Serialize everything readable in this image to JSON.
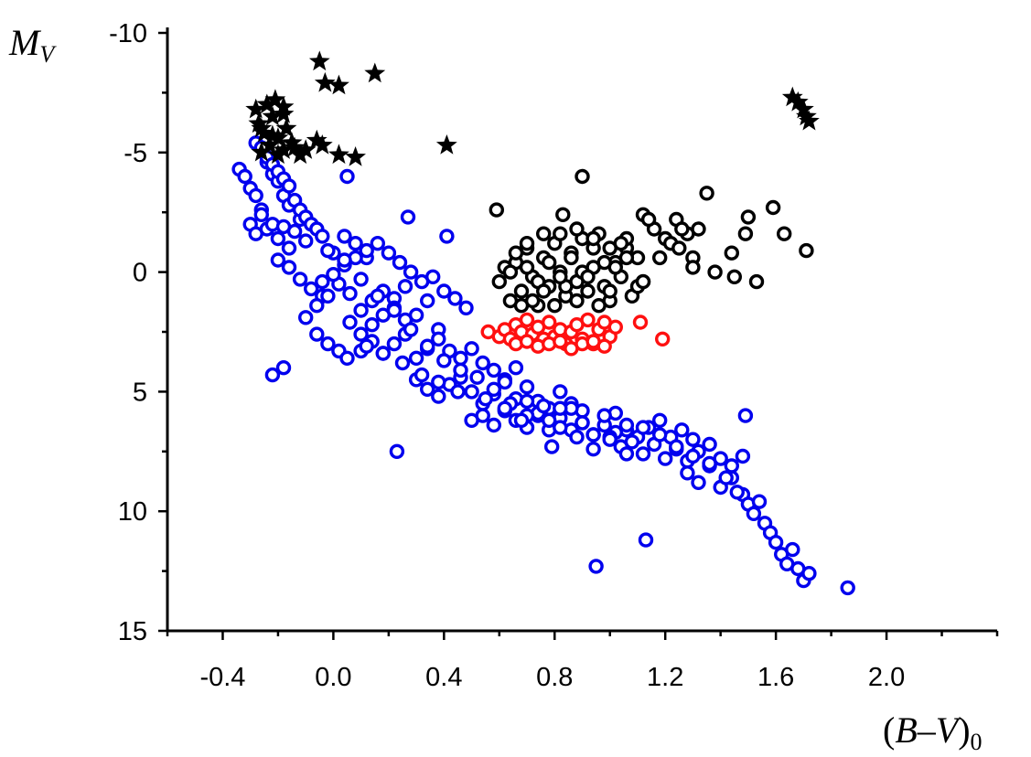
{
  "chart_data": {
    "type": "scatter",
    "xlabel_parts": [
      "(",
      "B",
      "–",
      "V",
      ")",
      "0"
    ],
    "ylabel_parts": [
      "M",
      "V"
    ],
    "xlim": [
      -0.6,
      2.4
    ],
    "ylim": [
      15,
      -10
    ],
    "y_inverted": true,
    "x_ticks": [
      "-0.4",
      "0.0",
      "0.4",
      "0.8",
      "1.2",
      "1.6",
      "2.0"
    ],
    "x_tick_values": [
      -0.4,
      0.0,
      0.4,
      0.8,
      1.2,
      1.6,
      2.0
    ],
    "y_ticks": [
      "-10",
      "-5",
      "0",
      "5",
      "10",
      "15"
    ],
    "y_tick_values": [
      -10,
      -5,
      0,
      5,
      10,
      15
    ],
    "grid": false,
    "legend": "none",
    "series": [
      {
        "marker": "open-circle",
        "color": "#0000ee",
        "x": [
          -0.34,
          -0.32,
          -0.3,
          -0.28,
          -0.26,
          -0.24,
          -0.22,
          -0.2,
          -0.18,
          -0.16,
          -0.3,
          -0.28,
          -0.26,
          -0.24,
          -0.22,
          -0.2,
          -0.18,
          -0.16,
          -0.14,
          -0.12,
          -0.1,
          -0.28,
          -0.26,
          -0.24,
          -0.22,
          -0.2,
          -0.18,
          -0.16,
          -0.14,
          -0.12,
          -0.1,
          -0.08,
          -0.06,
          -0.04,
          -0.2,
          -0.16,
          -0.12,
          -0.08,
          -0.04,
          0.0,
          0.04,
          0.08,
          0.12,
          -0.1,
          -0.06,
          -0.02,
          0.02,
          0.06,
          0.1,
          0.14,
          0.18,
          0.22,
          0.26,
          -0.06,
          -0.02,
          0.02,
          0.06,
          0.1,
          0.14,
          0.18,
          0.22,
          0.26,
          0.3,
          0.34,
          0.38,
          -0.04,
          0.0,
          0.04,
          0.08,
          0.12,
          0.16,
          0.2,
          0.24,
          0.28,
          0.32,
          0.36,
          0.4,
          0.44,
          0.48,
          0.1,
          0.14,
          0.18,
          0.22,
          0.26,
          0.3,
          0.34,
          0.38,
          0.42,
          0.46,
          0.5,
          0.54,
          0.58,
          0.62,
          0.66,
          0.3,
          0.34,
          0.38,
          0.42,
          0.46,
          0.5,
          0.54,
          0.58,
          0.62,
          0.66,
          0.7,
          0.74,
          0.78,
          0.82,
          0.86,
          0.9,
          0.5,
          0.54,
          0.58,
          0.62,
          0.66,
          0.7,
          0.74,
          0.78,
          0.82,
          0.86,
          0.9,
          0.94,
          0.98,
          1.02,
          1.06,
          0.7,
          0.74,
          0.78,
          0.82,
          0.86,
          0.9,
          0.94,
          0.98,
          1.02,
          1.06,
          1.1,
          1.14,
          1.18,
          1.22,
          1.26,
          1.3,
          1.0,
          1.04,
          1.08,
          1.12,
          1.16,
          1.2,
          1.24,
          1.28,
          1.32,
          1.36,
          1.4,
          1.44,
          1.48,
          1.28,
          1.32,
          1.36,
          1.4,
          1.44,
          1.48,
          1.5,
          1.52,
          1.54,
          1.56,
          1.58,
          1.6,
          1.62,
          1.64,
          1.66,
          1.68,
          1.7,
          1.72,
          -0.02,
          0.04,
          0.1,
          0.16,
          0.22,
          0.28,
          0.34,
          0.4,
          0.46,
          0.52,
          0.58,
          0.64,
          0.7,
          0.76,
          0.82,
          0.88,
          0.94,
          1.0,
          1.06,
          1.12,
          1.18,
          1.24,
          1.3,
          1.36,
          1.42,
          1.46,
          0.05,
          0.12,
          0.18,
          0.25,
          0.32,
          0.38,
          0.45,
          0.55,
          0.62,
          0.68,
          -0.22,
          -0.18,
          0.23,
          0.95,
          1.13,
          1.86,
          1.49,
          0.79,
          0.05,
          0.27,
          0.41
        ],
        "y": [
          -4.3,
          -4.0,
          -3.5,
          -3.2,
          -2.6,
          -4.6,
          -4.1,
          -3.8,
          -3.2,
          -2.8,
          -2.0,
          -1.6,
          -2.4,
          -1.8,
          -2.0,
          -1.4,
          -1.9,
          -1.0,
          -1.7,
          -2.2,
          -1.3,
          -5.4,
          -5.2,
          -4.8,
          -4.5,
          -4.2,
          -3.9,
          -3.6,
          -3.0,
          -2.6,
          -2.3,
          -2.0,
          -1.8,
          -1.5,
          -0.5,
          -0.2,
          0.3,
          0.7,
          1.0,
          -0.8,
          -1.5,
          -1.2,
          -0.6,
          1.9,
          1.4,
          1.0,
          0.5,
          0.9,
          1.6,
          1.2,
          0.8,
          1.1,
          0.6,
          2.6,
          3.0,
          3.3,
          2.1,
          2.6,
          2.2,
          1.8,
          1.5,
          2.0,
          1.8,
          1.2,
          2.4,
          0.4,
          0.1,
          -0.3,
          -0.6,
          -0.9,
          -1.2,
          -0.8,
          -0.4,
          0.0,
          0.4,
          0.2,
          0.8,
          1.1,
          1.5,
          3.3,
          2.9,
          3.4,
          3.0,
          2.6,
          3.6,
          3.2,
          2.8,
          3.3,
          3.6,
          3.2,
          3.8,
          4.1,
          4.5,
          4.0,
          4.5,
          4.9,
          5.2,
          4.7,
          4.4,
          5.0,
          5.5,
          5.1,
          4.6,
          5.3,
          4.8,
          5.4,
          5.7,
          5.0,
          5.5,
          5.8,
          6.2,
          6.0,
          6.4,
          5.8,
          6.2,
          6.5,
          6.0,
          6.6,
          6.1,
          5.7,
          6.3,
          6.8,
          6.4,
          5.9,
          6.6,
          5.4,
          5.9,
          6.2,
          5.7,
          6.6,
          6.3,
          6.8,
          6.0,
          6.7,
          6.4,
          6.9,
          6.5,
          6.2,
          6.9,
          6.6,
          7.0,
          6.9,
          7.3,
          7.1,
          7.6,
          7.2,
          7.8,
          7.4,
          7.9,
          7.5,
          7.2,
          7.8,
          8.1,
          7.7,
          8.4,
          8.8,
          8.1,
          9.0,
          8.6,
          9.3,
          9.7,
          10.1,
          9.6,
          10.5,
          10.9,
          11.3,
          11.8,
          12.2,
          11.6,
          12.4,
          12.9,
          12.6,
          -0.9,
          -0.5,
          0.3,
          1.0,
          1.6,
          2.4,
          3.1,
          3.7,
          4.1,
          4.4,
          4.9,
          5.5,
          6.0,
          5.6,
          6.5,
          6.9,
          7.4,
          7.0,
          7.6,
          6.5,
          6.8,
          7.3,
          7.7,
          8.0,
          8.6,
          9.2,
          3.6,
          3.1,
          3.4,
          3.8,
          4.3,
          4.6,
          5.0,
          5.3,
          5.7,
          6.2,
          4.3,
          4.0,
          7.5,
          12.3,
          11.2,
          13.2,
          6.0,
          7.3,
          -4.0,
          -2.3,
          -1.5
        ],
        "note": "approximate sample of the dense blue population (main sequence)"
      },
      {
        "marker": "open-circle",
        "color": "#ff1010",
        "x": [
          0.56,
          0.6,
          0.62,
          0.64,
          0.66,
          0.68,
          0.7,
          0.72,
          0.74,
          0.76,
          0.78,
          0.8,
          0.82,
          0.84,
          0.86,
          0.88,
          0.9,
          0.92,
          0.94,
          0.96,
          0.98,
          1.0,
          1.02,
          0.66,
          0.7,
          0.74,
          0.78,
          0.82,
          0.86,
          0.9,
          0.94,
          0.98,
          1.11,
          1.19
        ],
        "y": [
          2.5,
          2.7,
          2.4,
          2.8,
          2.2,
          2.5,
          2.0,
          2.6,
          2.3,
          2.8,
          2.1,
          2.7,
          2.4,
          3.0,
          2.5,
          2.2,
          2.8,
          2.0,
          3.0,
          2.4,
          2.1,
          2.7,
          2.3,
          3.0,
          2.9,
          3.1,
          3.0,
          2.9,
          3.2,
          3.0,
          2.9,
          3.1,
          2.1,
          2.8
        ],
        "note": "approximate red population"
      },
      {
        "marker": "open-circle",
        "color": "#000000",
        "x": [
          0.59,
          0.6,
          0.62,
          0.64,
          0.66,
          0.68,
          0.7,
          0.72,
          0.74,
          0.76,
          0.78,
          0.8,
          0.82,
          0.84,
          0.86,
          0.88,
          0.9,
          0.92,
          0.94,
          0.96,
          0.98,
          1.0,
          1.02,
          1.04,
          1.06,
          1.08,
          1.1,
          1.12,
          0.66,
          0.7,
          0.74,
          0.78,
          0.82,
          0.86,
          0.9,
          0.94,
          0.98,
          1.02,
          1.06,
          1.1,
          0.68,
          0.72,
          0.76,
          0.8,
          0.84,
          0.88,
          0.92,
          0.96,
          1.0,
          1.04,
          0.64,
          0.7,
          0.76,
          0.82,
          0.88,
          0.94,
          1.0,
          1.06,
          1.12,
          1.16,
          1.2,
          1.24,
          1.28,
          1.3,
          1.32,
          1.35,
          1.38,
          1.44,
          1.45,
          1.49,
          1.5,
          1.53,
          1.59,
          1.63,
          1.71,
          0.9,
          0.83,
          1.12,
          1.14,
          1.18,
          1.22,
          1.26,
          1.3,
          1.25
        ],
        "y": [
          -2.6,
          0.4,
          -0.2,
          1.2,
          -0.4,
          0.8,
          -1.0,
          0.2,
          1.4,
          -0.6,
          0.6,
          -1.2,
          0.0,
          1.0,
          -0.8,
          0.4,
          -1.4,
          0.8,
          -0.2,
          -1.6,
          0.6,
          1.2,
          -0.4,
          0.2,
          -1.0,
          1.0,
          -0.6,
          0.4,
          -0.8,
          -0.2,
          0.4,
          -0.4,
          -1.6,
          -0.6,
          0.0,
          -1.0,
          -0.4,
          -0.2,
          -1.4,
          0.6,
          1.4,
          1.2,
          0.8,
          1.4,
          0.6,
          1.2,
          0.2,
          1.4,
          0.8,
          -1.2,
          0.0,
          -1.2,
          -1.6,
          0.2,
          -1.8,
          -1.4,
          -1.0,
          -0.6,
          0.4,
          -1.8,
          -1.4,
          -2.2,
          -1.6,
          -0.6,
          -1.8,
          -3.3,
          0.0,
          -0.8,
          0.2,
          -1.6,
          -2.3,
          0.4,
          -2.7,
          -1.6,
          -0.9,
          -4.0,
          -2.4,
          -2.4,
          -2.2,
          -0.6,
          -1.2,
          -1.8,
          -0.2,
          -1.0
        ],
        "note": "approximate black open-circle population (red giants)"
      },
      {
        "marker": "filled-star",
        "color": "#000000",
        "x": [
          -0.05,
          -0.03,
          0.02,
          0.15,
          0.41,
          -0.28,
          -0.27,
          -0.25,
          -0.24,
          -0.22,
          -0.21,
          -0.2,
          -0.18,
          -0.17,
          -0.15,
          -0.26,
          -0.23,
          -0.2,
          -0.18,
          -0.14,
          -0.12,
          -0.1,
          -0.06,
          -0.04,
          0.02,
          0.08,
          -0.26,
          -0.22,
          -0.18,
          1.66,
          1.68,
          1.7,
          1.71,
          1.72
        ],
        "y": [
          -8.8,
          -7.9,
          -7.8,
          -8.3,
          -5.3,
          -6.8,
          -6.2,
          -5.8,
          -7.0,
          -6.5,
          -7.2,
          -5.6,
          -6.6,
          -6.0,
          -5.4,
          -5.0,
          -5.3,
          -4.9,
          -5.1,
          -5.2,
          -4.9,
          -5.1,
          -5.5,
          -5.3,
          -4.9,
          -4.8,
          -6.0,
          -5.7,
          -6.9,
          -7.3,
          -7.1,
          -6.8,
          -6.5,
          -6.3
        ],
        "note": "approximate filled-star population (supergiants)"
      }
    ]
  }
}
